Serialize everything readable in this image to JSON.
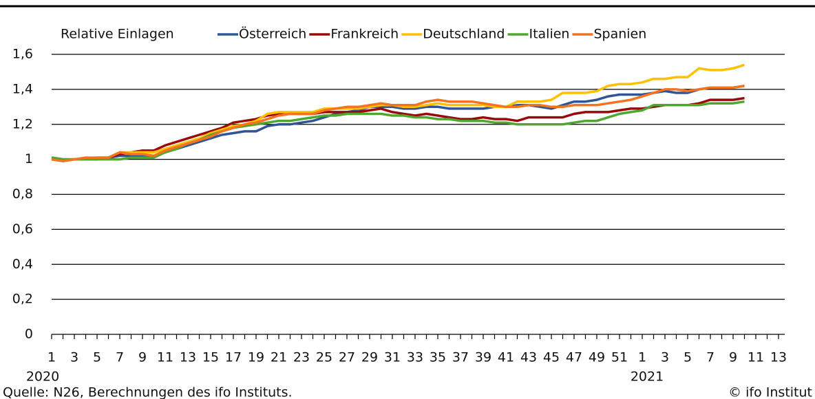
{
  "chart_data": {
    "type": "line",
    "y_axis_label": "Relative Einlagen",
    "categories": [
      "1",
      null,
      "3",
      null,
      "5",
      null,
      "7",
      null,
      "9",
      null,
      "11",
      null,
      "13",
      null,
      "15",
      null,
      "17",
      null,
      "19",
      null,
      "21",
      null,
      "23",
      null,
      "25",
      null,
      "27",
      null,
      "29",
      null,
      "31",
      null,
      "33",
      null,
      "35",
      null,
      "37",
      null,
      "39",
      null,
      "41",
      null,
      "43",
      null,
      "45",
      null,
      "47",
      null,
      "49",
      null,
      "51",
      null,
      "1",
      null,
      "3",
      null,
      "5",
      null,
      "7",
      null,
      "9",
      null,
      "11",
      null,
      "13"
    ],
    "annotations": [
      "2020",
      "2021"
    ],
    "source": "Quelle: N26, Berechnungen des ifo Instituts.",
    "copyright": "© ifo Institut",
    "ylim": [
      0,
      1.6
    ],
    "yticks": [
      0,
      {
        "value": 0.2,
        "label": "0,2"
      },
      {
        "value": 0.4,
        "label": "0,4"
      },
      {
        "value": 0.6,
        "label": "0,6"
      },
      {
        "value": 0.8,
        "label": "0,8"
      },
      1,
      {
        "value": 1.2,
        "label": "1,2"
      },
      {
        "value": 1.4,
        "label": "1,4"
      },
      {
        "value": 1.6,
        "label": "1,6"
      }
    ],
    "grid": true,
    "series": [
      {
        "name": "Österreich",
        "color": "#2f5597",
        "values": [
          1.01,
          1.0,
          1.0,
          1.0,
          1.0,
          1.01,
          1.02,
          1.02,
          1.02,
          1.02,
          1.04,
          1.06,
          1.08,
          1.1,
          1.12,
          1.14,
          1.15,
          1.16,
          1.16,
          1.19,
          1.2,
          1.2,
          1.21,
          1.22,
          1.24,
          1.26,
          1.27,
          1.28,
          1.3,
          1.3,
          1.3,
          1.29,
          1.29,
          1.3,
          1.3,
          1.29,
          1.29,
          1.29,
          1.29,
          1.3,
          1.3,
          1.31,
          1.31,
          1.3,
          1.29,
          1.31,
          1.33,
          1.33,
          1.34,
          1.36,
          1.37,
          1.37,
          1.37,
          1.38,
          1.39,
          1.38,
          1.38,
          1.4,
          1.41,
          1.41,
          1.41,
          1.42,
          null,
          null,
          null
        ]
      },
      {
        "name": "Frankreich",
        "color": "#9a0a0a",
        "values": [
          1.0,
          0.99,
          1.0,
          1.0,
          1.01,
          1.01,
          1.03,
          1.04,
          1.05,
          1.05,
          1.08,
          1.1,
          1.12,
          1.14,
          1.16,
          1.18,
          1.21,
          1.22,
          1.23,
          1.25,
          1.26,
          1.26,
          1.26,
          1.26,
          1.27,
          1.27,
          1.27,
          1.27,
          1.28,
          1.29,
          1.27,
          1.26,
          1.25,
          1.26,
          1.25,
          1.24,
          1.23,
          1.23,
          1.24,
          1.23,
          1.23,
          1.22,
          1.24,
          1.24,
          1.24,
          1.24,
          1.26,
          1.27,
          1.27,
          1.27,
          1.28,
          1.29,
          1.29,
          1.3,
          1.31,
          1.31,
          1.31,
          1.32,
          1.34,
          1.34,
          1.34,
          1.35,
          null,
          null,
          null
        ]
      },
      {
        "name": "Deutschland",
        "color": "#ffc000",
        "values": [
          1.0,
          0.99,
          1.0,
          1.0,
          1.01,
          1.01,
          1.04,
          1.04,
          1.04,
          1.04,
          1.06,
          1.08,
          1.1,
          1.12,
          1.15,
          1.17,
          1.19,
          1.2,
          1.22,
          1.26,
          1.27,
          1.27,
          1.27,
          1.27,
          1.29,
          1.29,
          1.29,
          1.29,
          1.3,
          1.31,
          1.31,
          1.3,
          1.3,
          1.31,
          1.32,
          1.31,
          1.31,
          1.31,
          1.31,
          1.3,
          1.3,
          1.33,
          1.33,
          1.33,
          1.34,
          1.38,
          1.38,
          1.38,
          1.39,
          1.42,
          1.43,
          1.43,
          1.44,
          1.46,
          1.46,
          1.47,
          1.47,
          1.52,
          1.51,
          1.51,
          1.52,
          1.54,
          null,
          null,
          null
        ]
      },
      {
        "name": "Italien",
        "color": "#4ea72e",
        "values": [
          1.01,
          1.0,
          1.0,
          1.0,
          1.0,
          1.0,
          1.0,
          1.01,
          1.01,
          1.01,
          1.04,
          1.06,
          1.09,
          1.11,
          1.14,
          1.16,
          1.18,
          1.19,
          1.2,
          1.21,
          1.22,
          1.22,
          1.23,
          1.24,
          1.25,
          1.25,
          1.26,
          1.26,
          1.26,
          1.26,
          1.25,
          1.25,
          1.24,
          1.24,
          1.23,
          1.23,
          1.22,
          1.22,
          1.22,
          1.21,
          1.21,
          1.2,
          1.2,
          1.2,
          1.2,
          1.2,
          1.21,
          1.22,
          1.22,
          1.24,
          1.26,
          1.27,
          1.28,
          1.31,
          1.31,
          1.31,
          1.31,
          1.31,
          1.32,
          1.32,
          1.32,
          1.33,
          null,
          null,
          null
        ]
      },
      {
        "name": "Spanien",
        "color": "#f4731e",
        "values": [
          1.0,
          0.99,
          1.0,
          1.01,
          1.01,
          1.01,
          1.04,
          1.03,
          1.03,
          1.02,
          1.05,
          1.07,
          1.09,
          1.11,
          1.13,
          1.16,
          1.18,
          1.2,
          1.21,
          1.23,
          1.25,
          1.26,
          1.26,
          1.26,
          1.28,
          1.29,
          1.3,
          1.3,
          1.31,
          1.32,
          1.31,
          1.31,
          1.31,
          1.33,
          1.34,
          1.33,
          1.33,
          1.33,
          1.32,
          1.31,
          1.3,
          1.3,
          1.31,
          1.31,
          1.3,
          1.3,
          1.31,
          1.31,
          1.31,
          1.32,
          1.33,
          1.34,
          1.36,
          1.38,
          1.4,
          1.4,
          1.39,
          1.4,
          1.41,
          1.41,
          1.41,
          1.42,
          null,
          null,
          null
        ]
      }
    ]
  }
}
